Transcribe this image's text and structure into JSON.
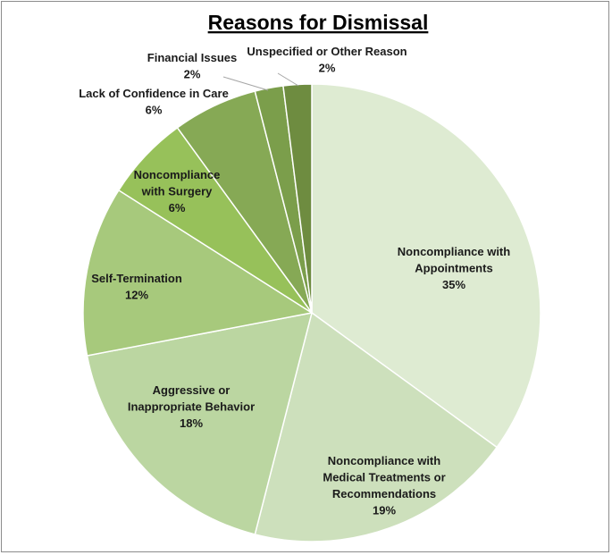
{
  "chart_data": {
    "type": "pie",
    "title": "Reasons for Dismissal",
    "slices": [
      {
        "label": [
          "Noncompliance with",
          "Appointments"
        ],
        "pct_label": "35%",
        "value": 35,
        "color": "#deebd2"
      },
      {
        "label": [
          "Noncompliance with",
          "Medical Treatments or",
          "Recommendations"
        ],
        "pct_label": "19%",
        "value": 19,
        "color": "#cde0bc"
      },
      {
        "label": [
          "Aggressive or",
          "Inappropriate Behavior"
        ],
        "pct_label": "18%",
        "value": 18,
        "color": "#bbd6a1"
      },
      {
        "label": [
          "Self-Termination"
        ],
        "pct_label": "12%",
        "value": 12,
        "color": "#a7c97c"
      },
      {
        "label": [
          "Noncompliance",
          "with Surgery"
        ],
        "pct_label": "6%",
        "value": 6,
        "color": "#97c15a"
      },
      {
        "label": [
          "Lack of Confidence in Care"
        ],
        "pct_label": "6%",
        "value": 6,
        "color": "#86a955"
      },
      {
        "label": [
          "Financial Issues"
        ],
        "pct_label": "2%",
        "value": 2,
        "color": "#7b9e4b"
      },
      {
        "label": [
          "Unspecified or Other Reason"
        ],
        "pct_label": "2%",
        "value": 2,
        "color": "#6e8c40"
      }
    ]
  }
}
